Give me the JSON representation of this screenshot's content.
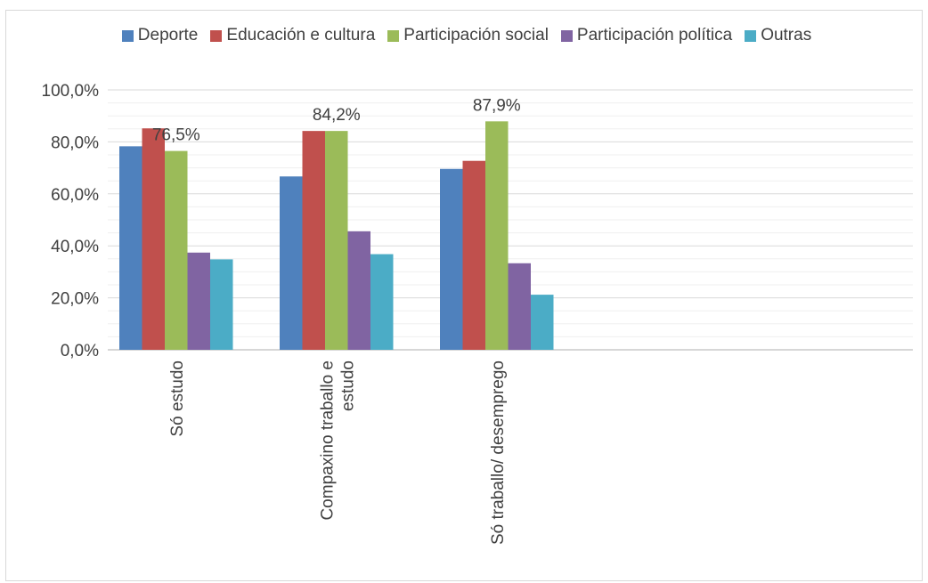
{
  "chart_data": {
    "type": "bar",
    "title": "",
    "xlabel": "",
    "ylabel": "",
    "ylim": [
      0,
      100
    ],
    "y_ticks": [
      "0,0%",
      "20,0%",
      "40,0%",
      "60,0%",
      "80,0%",
      "100,0%"
    ],
    "y_tick_values": [
      0,
      20,
      40,
      60,
      80,
      100
    ],
    "grid": true,
    "legend_position": "top",
    "categories": [
      "Só estudo",
      "Compaxino traballo e estudo",
      "Só traballo/ desemprego"
    ],
    "category_label_lines": [
      [
        "Só estudo"
      ],
      [
        "Compaxino traballo e",
        "estudo"
      ],
      [
        "Só traballo/ desemprego"
      ]
    ],
    "series": [
      {
        "name": "Deporte",
        "color": "#4f81bd",
        "values": [
          78.3,
          66.7,
          69.6
        ]
      },
      {
        "name": "Educación e cultura",
        "color": "#c0504d",
        "values": [
          85.2,
          84.2,
          72.7
        ]
      },
      {
        "name": "Participación social",
        "color": "#9bbb59",
        "values": [
          76.5,
          84.2,
          87.9
        ]
      },
      {
        "name": "Participación política",
        "color": "#8064a2",
        "values": [
          37.4,
          45.6,
          33.3
        ]
      },
      {
        "name": "Outras",
        "color": "#4bacc6",
        "values": [
          34.8,
          36.8,
          21.2
        ]
      }
    ],
    "annotations": [
      {
        "category_index": 0,
        "text": "76,5%",
        "value": 76.5
      },
      {
        "category_index": 1,
        "text": "84,2%",
        "value": 84.2
      },
      {
        "category_index": 2,
        "text": "87,9%",
        "value": 87.9
      }
    ]
  }
}
